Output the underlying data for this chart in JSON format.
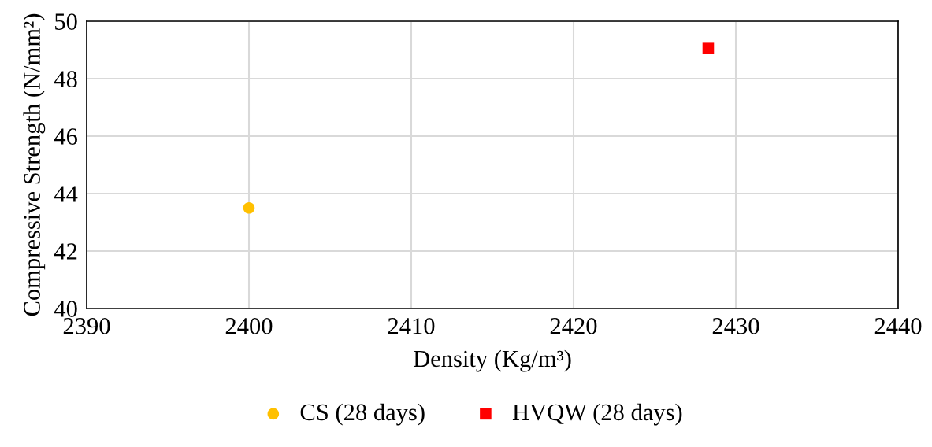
{
  "chart_data": {
    "type": "scatter",
    "xlabel": "Density (Kg/m³)",
    "ylabel": "Compressive Strength (N/mm²)",
    "xlim": [
      2390,
      2440
    ],
    "xticks": [
      2390,
      2400,
      2410,
      2420,
      2430,
      2440
    ],
    "ylim": [
      40,
      50
    ],
    "yticks": [
      40,
      42,
      44,
      46,
      48,
      50
    ],
    "grid": true,
    "legend": "bottom",
    "series": [
      {
        "name": "CS (28 days)",
        "color": "#ffc000",
        "marker": "circle",
        "x": [
          2400
        ],
        "values": [
          43.5
        ]
      },
      {
        "name": "HVQW (28 days)",
        "color": "#ff0000",
        "marker": "square",
        "x": [
          2428.3
        ],
        "values": [
          49.05
        ]
      }
    ]
  }
}
